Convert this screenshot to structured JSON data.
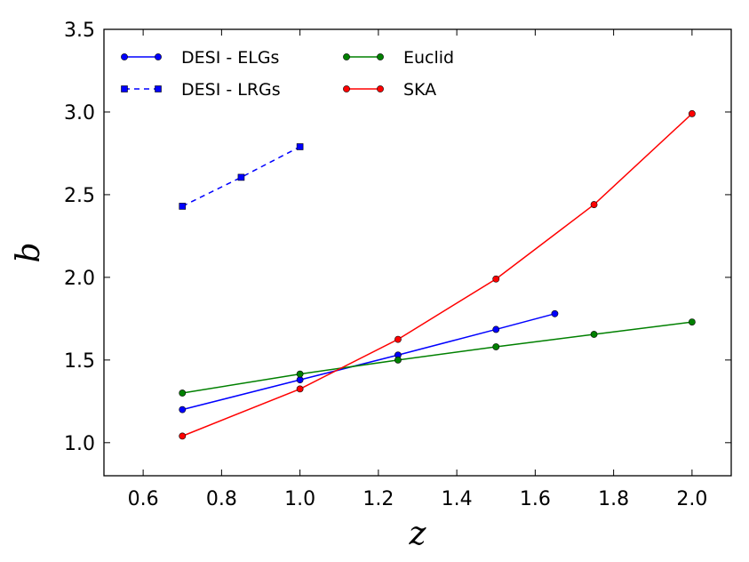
{
  "chart_data": {
    "type": "line",
    "title": "",
    "xlabel": "z",
    "ylabel": "b",
    "xlim": [
      0.5,
      2.1
    ],
    "ylim": [
      0.8,
      3.5
    ],
    "x_ticks": [
      0.6,
      0.8,
      1.0,
      1.2,
      1.4,
      1.6,
      1.8,
      2.0
    ],
    "x_tick_labels": [
      "0.6",
      "0.8",
      "1.0",
      "1.2",
      "1.4",
      "1.6",
      "1.8",
      "2.0"
    ],
    "y_ticks": [
      1.0,
      1.5,
      2.0,
      2.5,
      3.0,
      3.5
    ],
    "y_tick_labels": [
      "1.0",
      "1.5",
      "2.0",
      "2.5",
      "3.0",
      "3.5"
    ],
    "grid": false,
    "legend_position": "top-left",
    "series": [
      {
        "name": "DESI - ELGs",
        "color": "#0000ff",
        "linestyle": "solid",
        "marker": "circle",
        "x": [
          0.7,
          1.0,
          1.25,
          1.5,
          1.65
        ],
        "y": [
          1.2,
          1.38,
          1.53,
          1.685,
          1.78
        ]
      },
      {
        "name": "DESI - LRGs",
        "color": "#0000ff",
        "linestyle": "dashed",
        "marker": "square",
        "x": [
          0.7,
          0.85,
          1.0
        ],
        "y": [
          2.43,
          2.605,
          2.79
        ]
      },
      {
        "name": "Euclid",
        "color": "#008000",
        "linestyle": "solid",
        "marker": "circle",
        "x": [
          0.7,
          1.0,
          1.25,
          1.5,
          1.75,
          2.0
        ],
        "y": [
          1.3,
          1.415,
          1.5,
          1.58,
          1.655,
          1.73
        ]
      },
      {
        "name": "SKA",
        "color": "#ff0000",
        "linestyle": "solid",
        "marker": "circle",
        "x": [
          0.7,
          1.0,
          1.25,
          1.5,
          1.75,
          2.0
        ],
        "y": [
          1.04,
          1.325,
          1.625,
          1.99,
          2.44,
          2.99
        ]
      }
    ]
  }
}
